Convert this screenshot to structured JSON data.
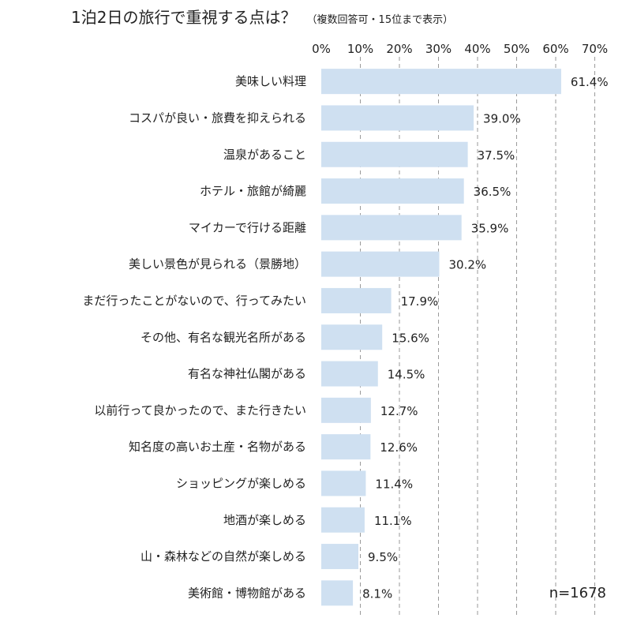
{
  "chart_data": {
    "type": "bar",
    "orientation": "horizontal",
    "title": "1泊2日の旅行で重視する点は？",
    "subtitle": "（複数回答可・15位まで表示）",
    "xlim": [
      0,
      70
    ],
    "x_ticks": [
      "0%",
      "10%",
      "20%",
      "30%",
      "40%",
      "50%",
      "60%",
      "70%"
    ],
    "x_tick_values": [
      0,
      10,
      20,
      30,
      40,
      50,
      60,
      70
    ],
    "x_axis_position": "top",
    "grid": true,
    "bar_color": "#cfe0f1",
    "categories": [
      "美味しい料理",
      "コスパが良い・旅費を抑えられる",
      "温泉があること",
      "ホテル・旅館が綺麗",
      "マイカーで行ける距離",
      "美しい景色が見られる（景勝地）",
      "まだ行ったことがないので、行ってみたい",
      "その他、有名な観光名所がある",
      "有名な神社仏閣がある",
      "以前行って良かったので、また行きたい",
      "知名度の高いお土産・名物がある",
      "ショッピングが楽しめる",
      "地酒が楽しめる",
      "山・森林などの自然が楽しめる",
      "美術館・博物館がある"
    ],
    "values": [
      61.4,
      39.0,
      37.5,
      36.5,
      35.9,
      30.2,
      17.9,
      15.6,
      14.5,
      12.7,
      12.6,
      11.4,
      11.1,
      9.5,
      8.1
    ],
    "value_labels": [
      "61.4%",
      "39.0%",
      "37.5%",
      "36.5%",
      "35.9%",
      "30.2%",
      "17.9%",
      "15.6%",
      "14.5%",
      "12.7%",
      "12.6%",
      "11.4%",
      "11.1%",
      "9.5%",
      "8.1%"
    ],
    "note": "n=1678"
  }
}
